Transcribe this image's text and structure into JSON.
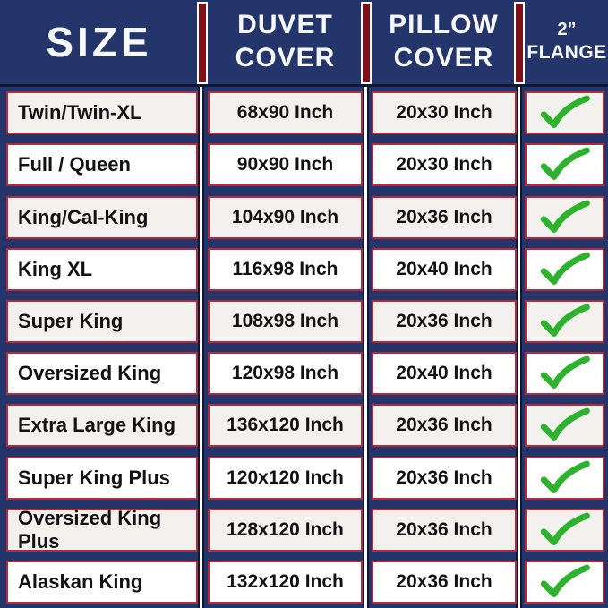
{
  "header": {
    "size": "SIZE",
    "duvet_line1": "DUVET",
    "duvet_line2": "COVER",
    "pillow_line1": "PILLOW",
    "pillow_line2": "COVER",
    "flange_line1": "2”",
    "flange_line2": "FLANGE"
  },
  "rows": [
    {
      "size": "Twin/Twin-XL",
      "duvet": "68x90 Inch",
      "pillow": "20x30 Inch",
      "flange": "checked"
    },
    {
      "size": "Full / Queen",
      "duvet": "90x90 Inch",
      "pillow": "20x30 Inch",
      "flange": "checked"
    },
    {
      "size": "King/Cal-King",
      "duvet": "104x90 Inch",
      "pillow": "20x36 Inch",
      "flange": "checked"
    },
    {
      "size": "King XL",
      "duvet": "116x98 Inch",
      "pillow": "20x40 Inch",
      "flange": "checked"
    },
    {
      "size": "Super King",
      "duvet": "108x98 Inch",
      "pillow": "20x36 Inch",
      "flange": "checked"
    },
    {
      "size": "Oversized King",
      "duvet": "120x98 Inch",
      "pillow": "20x40 Inch",
      "flange": "checked"
    },
    {
      "size": "Extra Large King",
      "duvet": "136x120 Inch",
      "pillow": "20x36 Inch",
      "flange": "checked"
    },
    {
      "size": "Super King Plus",
      "duvet": "120x120 Inch",
      "pillow": "20x36 Inch",
      "flange": "checked"
    },
    {
      "size": "Oversized King Plus",
      "duvet": "128x120 Inch",
      "pillow": "20x36 Inch",
      "flange": "checked"
    },
    {
      "size": "Alaskan King",
      "duvet": "132x120 Inch",
      "pillow": "20x36 Inch",
      "flange": "checked"
    }
  ],
  "icons": {
    "flange_check": "green-checkmark"
  },
  "colors": {
    "background_navy": "#24356b",
    "header_divider_red": "#7e1118",
    "card_border_red": "#b82837",
    "card_fill_gray": "#f2f1ee",
    "card_fill_white": "#ffffff",
    "check_green": "#2db22d",
    "header_text": "#f7f8fb",
    "cell_text": "#121212",
    "dark_line": "#0d1733"
  },
  "chart_data": {
    "type": "table",
    "title": "Bedding size chart: duvet cover and pillow cover dimensions with 2-inch flange",
    "columns": [
      "SIZE",
      "DUVET COVER",
      "PILLOW COVER",
      "2” FLANGE"
    ],
    "rows": [
      [
        "Twin/Twin-XL",
        "68x90 Inch",
        "20x30 Inch",
        "yes"
      ],
      [
        "Full / Queen",
        "90x90 Inch",
        "20x30 Inch",
        "yes"
      ],
      [
        "King/Cal-King",
        "104x90 Inch",
        "20x36 Inch",
        "yes"
      ],
      [
        "King XL",
        "116x98 Inch",
        "20x40 Inch",
        "yes"
      ],
      [
        "Super King",
        "108x98 Inch",
        "20x36 Inch",
        "yes"
      ],
      [
        "Oversized King",
        "120x98 Inch",
        "20x40 Inch",
        "yes"
      ],
      [
        "Extra Large King",
        "136x120 Inch",
        "20x36 Inch",
        "yes"
      ],
      [
        "Super King Plus",
        "120x120 Inch",
        "20x36 Inch",
        "yes"
      ],
      [
        "Oversized King Plus",
        "128x120 Inch",
        "20x36 Inch",
        "yes"
      ],
      [
        "Alaskan King",
        "132x120 Inch",
        "20x36 Inch",
        "yes"
      ]
    ],
    "layout": "header row on navy background with red column dividers; 10 data rows of bordered cards alternating light-gray/white; last column shows green checkmarks"
  }
}
